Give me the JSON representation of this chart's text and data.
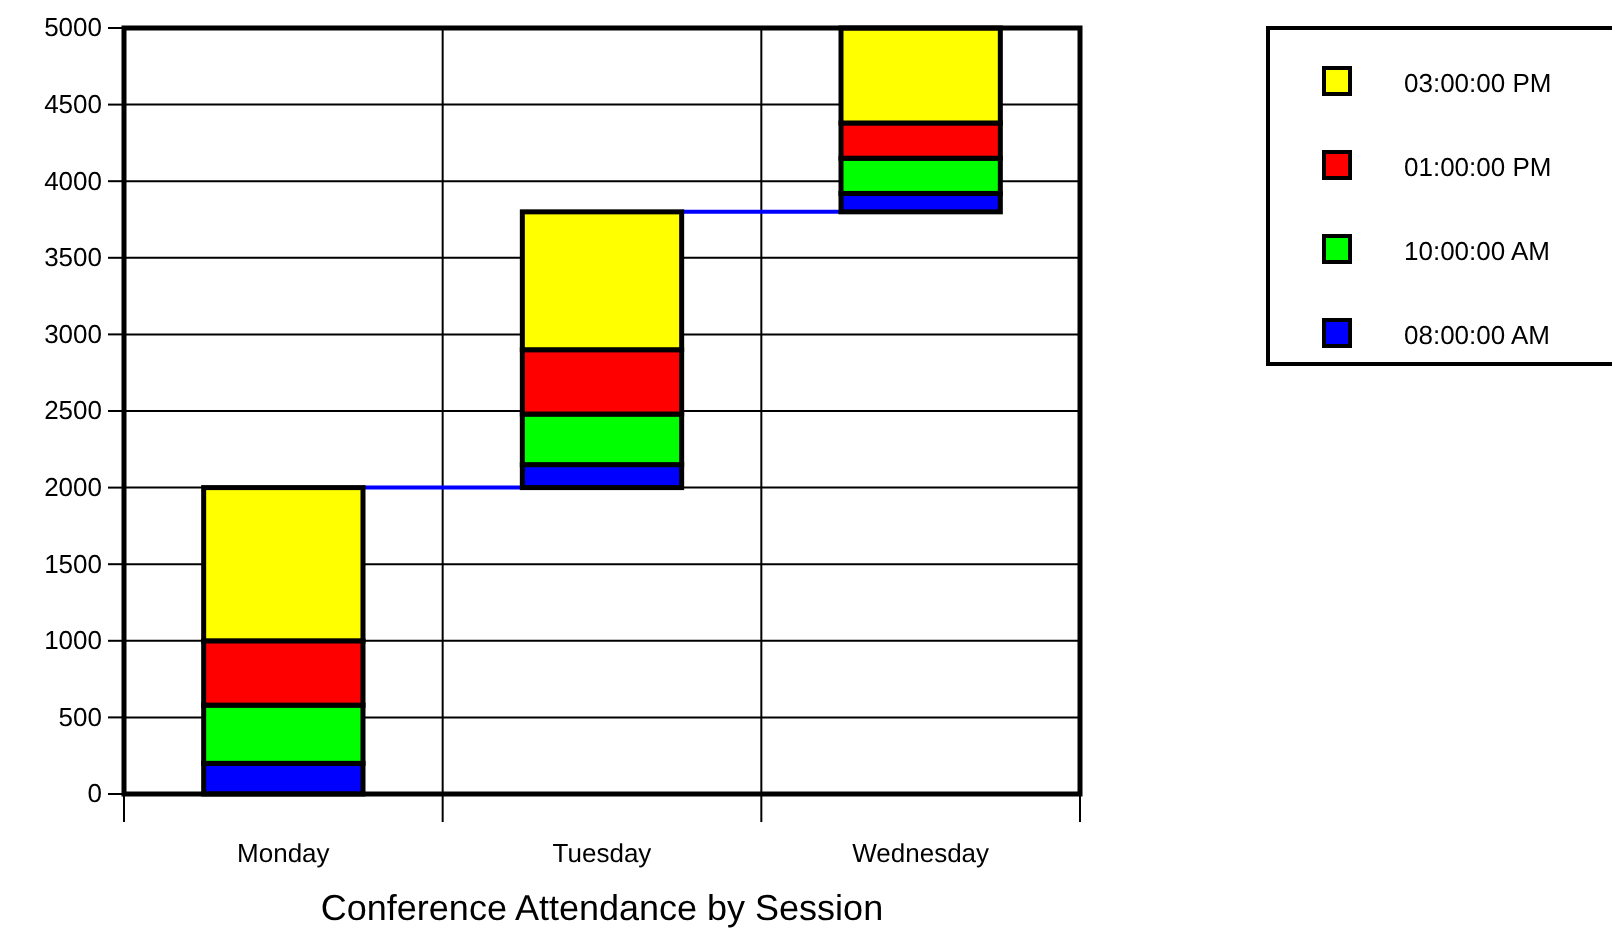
{
  "chart_data": {
    "type": "bar",
    "title": "Conference Attendance by Session",
    "categories": [
      "Monday",
      "Tuesday",
      "Wednesday"
    ],
    "series": [
      {
        "name": "08:00:00 AM",
        "color": "#0000ff",
        "base": [
          0,
          2000,
          3800
        ],
        "values": [
          200,
          150,
          120
        ]
      },
      {
        "name": "10:00:00 AM",
        "color": "#00ff00",
        "base": [
          200,
          2150,
          3920
        ],
        "values": [
          380,
          330,
          230
        ]
      },
      {
        "name": "01:00:00 PM",
        "color": "#ff0000",
        "base": [
          580,
          2480,
          4150
        ],
        "values": [
          420,
          420,
          230
        ]
      },
      {
        "name": "03:00:00 PM",
        "color": "#ffff00",
        "base": [
          1000,
          2900,
          4380
        ],
        "values": [
          1000,
          900,
          620
        ]
      }
    ],
    "ylim": [
      0,
      5000
    ],
    "yticks": [
      0,
      500,
      1000,
      1500,
      2000,
      2500,
      3000,
      3500,
      4000,
      4500,
      5000
    ],
    "grid": true,
    "legend": "top right"
  }
}
